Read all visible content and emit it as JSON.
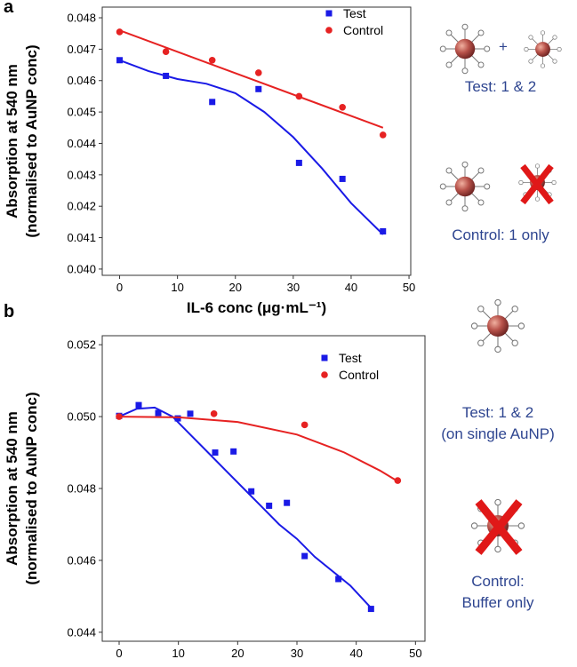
{
  "chart_data": [
    {
      "panel": "a",
      "type": "scatter",
      "xlabel": "IL-6 conc (μg·mL⁻¹)",
      "ylabel": [
        "Absorption at 540 nm",
        "(normalised to AuNP conc)"
      ],
      "xlim": [
        -3,
        50.3
      ],
      "ylim": [
        0.0398,
        0.04834
      ],
      "xticks": [
        0,
        10,
        20,
        30,
        40,
        50
      ],
      "yticks": [
        {
          "value": 0.04,
          "label": "0.040"
        },
        0.041,
        0.042,
        0.043,
        0.044,
        0.045,
        0.046,
        0.047,
        0.048
      ],
      "legend": "upper right",
      "series": [
        {
          "name": "Test",
          "color": "#1a1ae6",
          "marker": "square",
          "x": [
            0,
            8,
            16,
            24,
            31,
            38.5,
            45.5
          ],
          "values": [
            0.04665,
            0.04615,
            0.04532,
            0.04573,
            0.04338,
            0.04287,
            0.0412
          ],
          "fit": {
            "x": [
              0,
              5,
              10,
              15,
              20,
              25,
              30,
              35,
              40,
              45.5
            ],
            "values": [
              0.04665,
              0.0463,
              0.04605,
              0.0459,
              0.0456,
              0.045,
              0.0442,
              0.0432,
              0.0421,
              0.0411
            ]
          }
        },
        {
          "name": "Control",
          "color": "#e62222",
          "marker": "circle",
          "x": [
            0,
            8,
            16,
            24,
            31,
            38.5,
            45.5
          ],
          "values": [
            0.04755,
            0.04692,
            0.04665,
            0.04625,
            0.0455,
            0.04515,
            0.04427
          ],
          "fit": {
            "x": [
              0,
              45.5
            ],
            "values": [
              0.0476,
              0.0445
            ]
          }
        }
      ],
      "annotations": [
        "+",
        "Test: 1 & 2",
        "Control: 1 only"
      ]
    },
    {
      "panel": "b",
      "type": "scatter",
      "xlabel": "IL-6 conc (μg·mL⁻¹)",
      "ylabel": [
        "Absorption at 540 nm",
        "(normalised to AuNP conc)"
      ],
      "xlim": [
        -2.85,
        51.6
      ],
      "ylim": [
        0.04375,
        0.05225
      ],
      "xticks": [
        0,
        10,
        20,
        30,
        40,
        50
      ],
      "yticks": [
        0.044,
        0.046,
        0.048,
        {
          "value": 0.05,
          "label": "0.050"
        },
        0.052
      ],
      "legend": "upper right",
      "series": [
        {
          "name": "Test",
          "color": "#1a1ae6",
          "marker": "square",
          "x": [
            0,
            3.3,
            6.6,
            9.9,
            12,
            16.2,
            19.3,
            22.3,
            25.3,
            28.3,
            31.3,
            37,
            42.5
          ],
          "values": [
            0.05002,
            0.05032,
            0.0501,
            0.04995,
            0.05008,
            0.049,
            0.04903,
            0.04792,
            0.04752,
            0.0476,
            0.04612,
            0.04548,
            0.04465
          ],
          "fit": {
            "x": [
              0,
              3,
              6,
              9,
              12,
              15,
              18,
              21,
              24,
              27,
              30,
              33,
              36,
              39,
              42.5
            ],
            "values": [
              0.05,
              0.05022,
              0.05025,
              0.05,
              0.0495,
              0.049,
              0.0485,
              0.048,
              0.0475,
              0.047,
              0.0466,
              0.0461,
              0.0457,
              0.0453,
              0.04468
            ]
          }
        },
        {
          "name": "Control",
          "color": "#e62222",
          "marker": "circle",
          "x": [
            0,
            16,
            31.3,
            47
          ],
          "values": [
            0.05,
            0.05008,
            0.04977,
            0.04822
          ],
          "fit": {
            "x": [
              0,
              10,
              20,
              30,
              38,
              44,
              47
            ],
            "values": [
              0.05,
              0.04998,
              0.04985,
              0.0495,
              0.049,
              0.0485,
              0.0482
            ]
          }
        }
      ],
      "annotations": [
        "Test: 1 & 2",
        "(on single AuNP)",
        "Control:",
        "Buffer only"
      ]
    }
  ]
}
